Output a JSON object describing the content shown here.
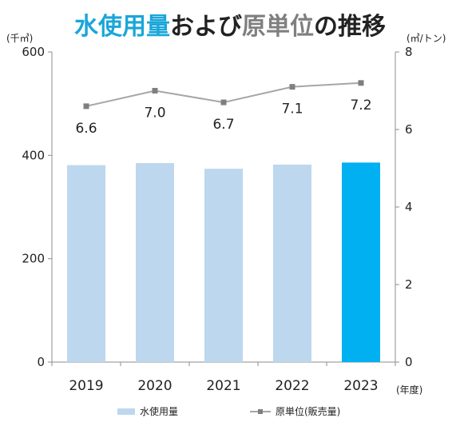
{
  "title": {
    "part1": "水使用量",
    "part2": "および",
    "part3": "原単位",
    "part4": "の推移"
  },
  "colors": {
    "bar": "#bdd7ee",
    "bar_highlight": "#00b0f0",
    "line": "#a6a6a6",
    "marker": "#7f7f7f",
    "title_accent": "#1aa6d8",
    "title_gray": "#7f7f7f"
  },
  "chart_data": {
    "type": "bar",
    "categories": [
      "2019",
      "2020",
      "2021",
      "2022",
      "2023"
    ],
    "xlabel": "(年度)",
    "series": [
      {
        "name": "水使用量",
        "type": "bar",
        "axis": "left",
        "values": [
          381,
          385,
          374,
          382,
          386
        ]
      },
      {
        "name": "原単位(販売量)",
        "type": "line",
        "axis": "right",
        "values": [
          6.6,
          7.0,
          6.7,
          7.1,
          7.2
        ]
      }
    ],
    "left_axis": {
      "unit": "(千㎥)",
      "ylim": [
        0,
        600
      ],
      "ticks": [
        "0",
        "200",
        "400",
        "600"
      ]
    },
    "right_axis": {
      "unit": "(㎥/トン)",
      "ylim": [
        0,
        8
      ],
      "ticks": [
        "0",
        "2",
        "4",
        "6",
        "8"
      ]
    },
    "data_labels": [
      "6.6",
      "7.0",
      "6.7",
      "7.1",
      "7.2"
    ],
    "highlight_index": 4,
    "grid": false,
    "legend_position": "bottom"
  }
}
